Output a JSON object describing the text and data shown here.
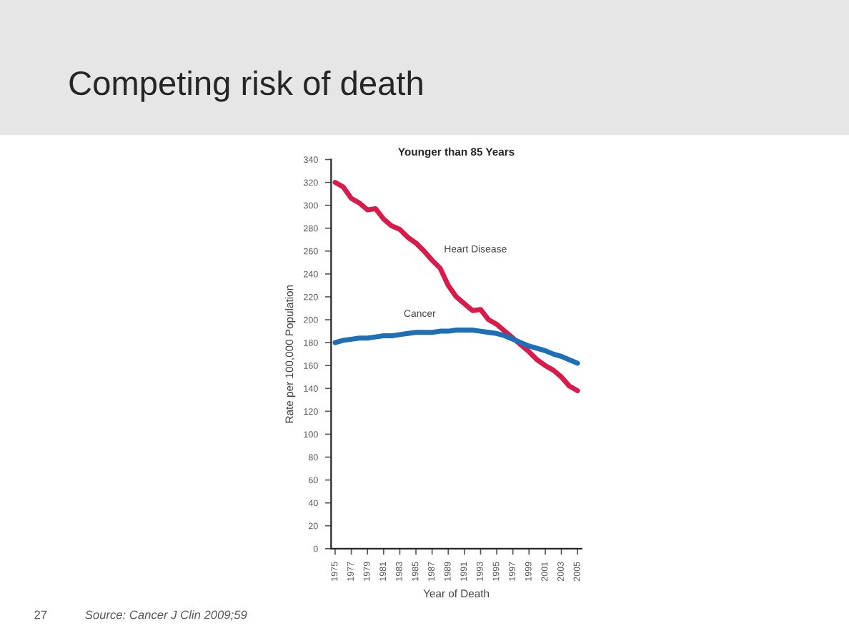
{
  "chart_data": {
    "type": "line",
    "title": "Competing risk of death",
    "subtitle": "Younger than 85 Years",
    "xlabel": "Year of Death",
    "ylabel": "Rate per 100,000 Population",
    "x": [
      1975,
      1976,
      1977,
      1978,
      1979,
      1980,
      1981,
      1982,
      1983,
      1984,
      1985,
      1986,
      1987,
      1988,
      1989,
      1990,
      1991,
      1992,
      1993,
      1994,
      1995,
      1996,
      1997,
      1998,
      1999,
      2000,
      2001,
      2002,
      2003,
      2004,
      2005
    ],
    "series": [
      {
        "name": "Heart Disease",
        "color": "#d81b4a",
        "values": [
          320,
          316,
          306,
          302,
          296,
          297,
          288,
          282,
          279,
          272,
          267,
          260,
          252,
          245,
          230,
          220,
          214,
          208,
          209,
          200,
          196,
          190,
          184,
          178,
          172,
          165,
          160,
          156,
          150,
          142,
          138
        ]
      },
      {
        "name": "Cancer",
        "color": "#1f6fb8",
        "values": [
          180,
          182,
          183,
          184,
          184,
          185,
          186,
          186,
          187,
          188,
          189,
          189,
          189,
          190,
          190,
          191,
          191,
          191,
          190,
          189,
          188,
          186,
          183,
          180,
          177,
          175,
          173,
          170,
          168,
          165,
          162
        ]
      }
    ],
    "xlim": [
      1974.5,
      2005.5
    ],
    "xticks": [
      1975,
      1977,
      1979,
      1981,
      1983,
      1985,
      1987,
      1989,
      1991,
      1993,
      1995,
      1997,
      1999,
      2001,
      2003,
      2005
    ],
    "ylim": [
      0,
      340
    ],
    "yticks": [
      0,
      20,
      40,
      60,
      80,
      100,
      120,
      140,
      160,
      180,
      200,
      220,
      240,
      260,
      280,
      300,
      320,
      340
    ],
    "grid": false,
    "legend": false,
    "marker": "none",
    "line_style": "solid",
    "annotations": [
      "Source: Cancer J Clin 2009;59",
      "27"
    ]
  }
}
